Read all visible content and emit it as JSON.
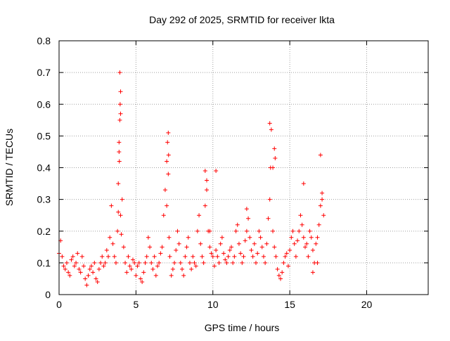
{
  "chart_data": {
    "type": "scatter",
    "title": "Day 292 of 2025, SRMTID for receiver lkta",
    "xlabel": "GPS time / hours",
    "ylabel": "SRMTID / TECUs",
    "xlim": [
      0,
      24
    ],
    "ylim": [
      0,
      0.8
    ],
    "x_ticks": [
      0,
      5,
      10,
      15,
      20
    ],
    "x_tick_labels": [
      "0",
      "5",
      "10",
      "15",
      "20"
    ],
    "y_ticks": [
      0,
      0.1,
      0.2,
      0.3,
      0.4,
      0.5,
      0.6,
      0.7,
      0.8
    ],
    "y_tick_labels": [
      "0",
      "0.1",
      "0.2",
      "0.3",
      "0.4",
      "0.5",
      "0.6",
      "0.7",
      "0.8"
    ],
    "grid": true,
    "marker": "+",
    "series": [
      {
        "name": "SRMTID",
        "color": "#ff0000",
        "x": [
          0.0,
          0.1,
          0.2,
          0.3,
          0.4,
          0.5,
          0.6,
          0.7,
          0.8,
          0.9,
          1.0,
          1.1,
          1.2,
          1.3,
          1.4,
          1.5,
          1.6,
          1.7,
          1.8,
          1.9,
          2.0,
          2.1,
          2.2,
          2.3,
          2.4,
          2.5,
          2.6,
          2.7,
          2.8,
          2.9,
          3.0,
          3.1,
          3.2,
          3.3,
          3.4,
          3.5,
          3.6,
          3.7,
          3.8,
          3.85,
          3.9,
          3.95,
          4.0,
          4.1,
          4.2,
          4.3,
          4.4,
          4.5,
          4.6,
          4.7,
          4.8,
          4.9,
          5.0,
          5.1,
          5.2,
          5.3,
          5.4,
          5.5,
          5.6,
          5.7,
          5.8,
          5.9,
          6.0,
          6.1,
          6.2,
          6.3,
          6.4,
          6.5,
          6.6,
          6.7,
          6.8,
          6.9,
          7.0,
          7.05,
          7.1,
          7.15,
          7.2,
          7.3,
          7.4,
          7.5,
          7.6,
          7.7,
          7.8,
          7.9,
          8.0,
          8.1,
          8.2,
          8.3,
          8.4,
          8.5,
          8.6,
          8.7,
          8.8,
          8.9,
          9.0,
          9.1,
          9.2,
          9.3,
          9.4,
          9.5,
          9.6,
          9.7,
          9.8,
          9.9,
          10.0,
          10.1,
          10.2,
          10.3,
          10.4,
          10.5,
          10.6,
          10.7,
          10.8,
          10.9,
          11.0,
          11.1,
          11.2,
          11.3,
          11.4,
          11.5,
          11.6,
          11.7,
          11.8,
          11.9,
          12.0,
          12.1,
          12.2,
          12.3,
          12.4,
          12.5,
          12.6,
          12.7,
          12.8,
          12.9,
          13.0,
          13.1,
          13.2,
          13.3,
          13.4,
          13.5,
          13.6,
          13.7,
          13.75,
          13.8,
          13.9,
          14.0,
          14.1,
          14.2,
          14.3,
          14.4,
          14.5,
          14.6,
          14.7,
          14.8,
          14.9,
          15.0,
          15.1,
          15.2,
          15.3,
          15.4,
          15.5,
          15.6,
          15.7,
          15.8,
          15.9,
          16.0,
          16.1,
          16.2,
          16.3,
          16.4,
          16.5,
          16.6,
          16.7,
          16.8,
          16.9,
          17.0,
          17.1,
          17.2,
          3.95,
          3.97,
          4.0,
          3.9,
          3.92,
          7.1,
          7.12,
          9.5,
          9.6,
          10.2,
          13.7,
          14.0,
          14.05,
          16.5,
          17.0,
          3.85,
          4.0,
          4.05,
          7.0,
          9.8,
          12.2,
          13.9,
          15.9,
          16.8,
          17.1
        ],
        "y": [
          0.13,
          0.17,
          0.12,
          0.09,
          0.08,
          0.1,
          0.07,
          0.06,
          0.11,
          0.12,
          0.09,
          0.1,
          0.13,
          0.08,
          0.07,
          0.12,
          0.09,
          0.05,
          0.03,
          0.06,
          0.08,
          0.09,
          0.07,
          0.1,
          0.05,
          0.04,
          0.08,
          0.1,
          0.12,
          0.09,
          0.1,
          0.14,
          0.12,
          0.18,
          0.28,
          0.16,
          0.12,
          0.1,
          0.2,
          0.35,
          0.48,
          0.55,
          0.64,
          0.3,
          0.15,
          0.1,
          0.07,
          0.12,
          0.09,
          0.08,
          0.11,
          0.1,
          0.06,
          0.09,
          0.1,
          0.05,
          0.04,
          0.07,
          0.1,
          0.12,
          0.18,
          0.15,
          0.1,
          0.08,
          0.12,
          0.06,
          0.09,
          0.1,
          0.13,
          0.15,
          0.25,
          0.33,
          0.42,
          0.48,
          0.38,
          0.18,
          0.12,
          0.06,
          0.08,
          0.1,
          0.14,
          0.2,
          0.16,
          0.1,
          0.08,
          0.06,
          0.12,
          0.15,
          0.18,
          0.1,
          0.08,
          0.12,
          0.1,
          0.09,
          0.2,
          0.25,
          0.16,
          0.12,
          0.1,
          0.28,
          0.36,
          0.2,
          0.15,
          0.13,
          0.12,
          0.09,
          0.14,
          0.12,
          0.1,
          0.16,
          0.18,
          0.13,
          0.11,
          0.1,
          0.12,
          0.14,
          0.15,
          0.1,
          0.12,
          0.2,
          0.22,
          0.16,
          0.13,
          0.1,
          0.12,
          0.17,
          0.2,
          0.24,
          0.18,
          0.14,
          0.12,
          0.16,
          0.1,
          0.13,
          0.2,
          0.18,
          0.15,
          0.12,
          0.1,
          0.16,
          0.24,
          0.3,
          0.4,
          0.52,
          0.2,
          0.15,
          0.12,
          0.08,
          0.06,
          0.05,
          0.07,
          0.1,
          0.12,
          0.13,
          0.09,
          0.14,
          0.18,
          0.2,
          0.16,
          0.12,
          0.17,
          0.2,
          0.25,
          0.22,
          0.18,
          0.15,
          0.16,
          0.12,
          0.2,
          0.18,
          0.14,
          0.1,
          0.16,
          0.18,
          0.22,
          0.28,
          0.3,
          0.25,
          0.7,
          0.6,
          0.57,
          0.45,
          0.42,
          0.51,
          0.44,
          0.39,
          0.33,
          0.39,
          0.54,
          0.46,
          0.43,
          0.07,
          0.44,
          0.26,
          0.25,
          0.19,
          0.28,
          0.2,
          0.27,
          0.4,
          0.35,
          0.1,
          0.32
        ]
      }
    ]
  }
}
